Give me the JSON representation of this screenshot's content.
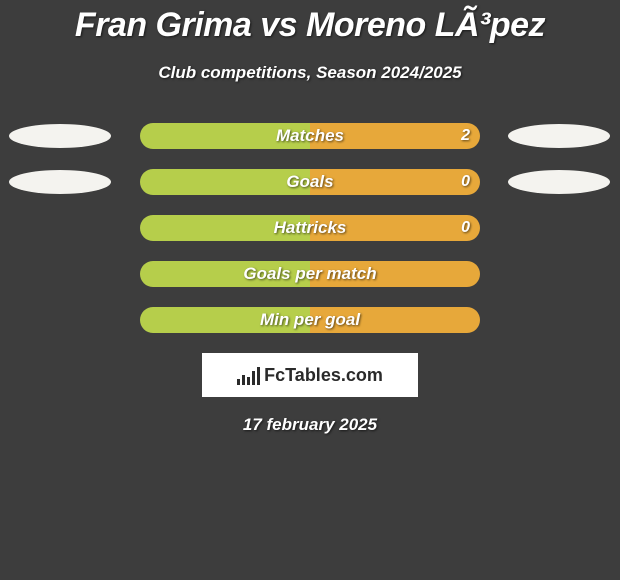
{
  "background_color": "#3d3d3d",
  "title": "Fran Grima vs Moreno LÃ³pez",
  "title_fontsize": 34,
  "subtitle": "Club competitions, Season 2024/2025",
  "subtitle_fontsize": 17,
  "ellipse_color": "#f4f3ef",
  "bar_left_color": "#b6ce4b",
  "bar_right_color": "#e7a83a",
  "metrics": [
    {
      "label": "Matches",
      "right_value": "2",
      "show_ellipses": true,
      "left_pct": 50,
      "right_pct": 50
    },
    {
      "label": "Goals",
      "right_value": "0",
      "show_ellipses": true,
      "left_pct": 50,
      "right_pct": 50
    },
    {
      "label": "Hattricks",
      "right_value": "0",
      "show_ellipses": false,
      "left_pct": 50,
      "right_pct": 50
    },
    {
      "label": "Goals per match",
      "right_value": "",
      "show_ellipses": false,
      "left_pct": 50,
      "right_pct": 50
    },
    {
      "label": "Min per goal",
      "right_value": "",
      "show_ellipses": false,
      "left_pct": 50,
      "right_pct": 50
    }
  ],
  "logo_text": "FcTables.com",
  "logo_bar_heights": [
    6,
    10,
    8,
    14,
    18
  ],
  "date_text": "17 february 2025",
  "label_fontsize": 17,
  "value_fontsize": 16
}
